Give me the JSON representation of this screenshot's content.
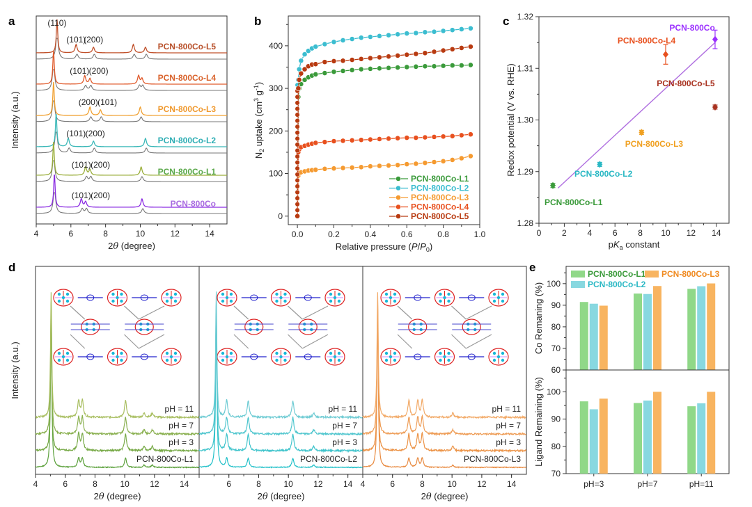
{
  "figure": {
    "panel_labels": [
      "a",
      "b",
      "c",
      "d",
      "e"
    ]
  },
  "chart_data": [
    {
      "id": "a",
      "type": "line",
      "title": "",
      "xlabel": "2θ (degree)",
      "ylabel": "Intensity (a.u.)",
      "xlim": [
        4,
        15
      ],
      "xticks": [
        4,
        6,
        8,
        10,
        12,
        14
      ],
      "grid": false,
      "note": "Stacked XRD patterns: experimental (colored) with simulated (gray) below each",
      "series": [
        {
          "name": "PCN-800Co-L5",
          "color": "#c0502a",
          "peaks": [
            5.2,
            6.3,
            7.3,
            9.6,
            10.3
          ],
          "annotations": [
            "(110)",
            "(101)",
            "(200)"
          ]
        },
        {
          "name": "PCN-800Co-L4",
          "color": "#e05a2b",
          "peaks": [
            5.0,
            6.8,
            7.1,
            9.9,
            10.1
          ],
          "annotations": [
            "(101)",
            "(200)"
          ]
        },
        {
          "name": "PCN-800Co-L3",
          "color": "#f0a030",
          "peaks": [
            5.0,
            7.1,
            7.7,
            10.0
          ],
          "annotations": [
            "(200)",
            "(101)"
          ]
        },
        {
          "name": "PCN-800Co-L2",
          "color": "#3bb8b8",
          "peaks": [
            5.15,
            5.85,
            7.3,
            10.3
          ],
          "annotations": [
            "(101)",
            "(200)"
          ]
        },
        {
          "name": "PCN-800Co-L1",
          "color": "#9aae3a",
          "peaks": [
            5.0,
            6.85,
            7.1,
            10.05
          ],
          "annotations": [
            "(101)",
            "(200)"
          ]
        },
        {
          "name": "PCN-800Co",
          "color": "#8a2be2",
          "peaks": [
            5.05,
            6.6,
            6.85,
            10.1
          ],
          "annotations": [
            "(101)",
            "(200)"
          ]
        }
      ],
      "label_colors": {
        "PCN-800Co-L5": "#b8502a",
        "PCN-800Co-L4": "#d9622b",
        "PCN-800Co-L3": "#f09a30",
        "PCN-800Co-L2": "#2eaeb4",
        "PCN-800Co-L1": "#5aa84a",
        "PCN-800Co": "#a86be0"
      }
    },
    {
      "id": "b",
      "type": "line",
      "title": "",
      "xlabel": "Relative pressure (P/P0)",
      "ylabel": "N2 uptake (cm3 g-1)",
      "xlim": [
        -0.05,
        1.0
      ],
      "ylim": [
        -20,
        470
      ],
      "xticks": [
        0.0,
        0.2,
        0.4,
        0.6,
        0.8,
        1.0
      ],
      "yticks": [
        0,
        100,
        200,
        300,
        400
      ],
      "legend": "bottom-right",
      "grid": false,
      "x": [
        0.0,
        0.005,
        0.01,
        0.02,
        0.04,
        0.06,
        0.08,
        0.1,
        0.15,
        0.2,
        0.25,
        0.3,
        0.35,
        0.4,
        0.45,
        0.5,
        0.55,
        0.6,
        0.65,
        0.7,
        0.75,
        0.8,
        0.85,
        0.9,
        0.95
      ],
      "series": [
        {
          "name": "PCN-800Co-L1",
          "color": "#3a9a3a",
          "values": [
            0,
            280,
            300,
            310,
            320,
            326,
            330,
            333,
            336,
            339,
            341,
            343,
            345,
            346,
            347,
            348,
            349,
            350,
            351,
            352,
            352,
            353,
            354,
            354,
            355
          ]
        },
        {
          "name": "PCN-800Co-L2",
          "color": "#3bbdd0",
          "values": [
            0,
            320,
            345,
            365,
            380,
            388,
            394,
            398,
            404,
            409,
            413,
            416,
            419,
            421,
            423,
            425,
            427,
            429,
            430,
            432,
            433,
            435,
            437,
            439,
            441
          ]
        },
        {
          "name": "PCN-800Co-L3",
          "color": "#f59a30",
          "values": [
            0,
            95,
            100,
            103,
            105,
            107,
            108,
            109,
            111,
            112,
            113,
            114,
            115,
            117,
            118,
            119,
            120,
            122,
            123,
            125,
            127,
            129,
            132,
            136,
            141
          ]
        },
        {
          "name": "PCN-800Co-L4",
          "color": "#e8501e",
          "values": [
            0,
            150,
            157,
            162,
            165,
            168,
            170,
            172,
            174,
            176,
            177,
            178,
            179,
            180,
            181,
            182,
            183,
            184,
            184,
            185,
            186,
            187,
            188,
            190,
            192
          ]
        },
        {
          "name": "PCN-800Co-L5",
          "color": "#b83a10",
          "values": [
            0,
            300,
            320,
            335,
            345,
            352,
            356,
            357,
            362,
            364,
            365,
            367,
            369,
            371,
            373,
            375,
            377,
            379,
            381,
            383,
            386,
            389,
            392,
            395,
            398
          ]
        }
      ]
    },
    {
      "id": "c",
      "type": "scatter",
      "title": "",
      "xlabel": "pKa constant",
      "ylabel": "Redox potential (V vs. RHE)",
      "xlim": [
        0,
        15
      ],
      "ylim": [
        1.28,
        1.32
      ],
      "xticks": [
        0,
        2,
        4,
        6,
        8,
        10,
        12,
        14
      ],
      "yticks": [
        1.28,
        1.29,
        1.3,
        1.31,
        1.32
      ],
      "ytick_labels": [
        "1.28",
        "1.29",
        "1.30",
        "1.31",
        "1.32"
      ],
      "grid": false,
      "points": [
        {
          "name": "PCN-800Co-L1",
          "x": 1.1,
          "y": 1.2873,
          "err": 0.0004,
          "color": "#3a9a3a"
        },
        {
          "name": "PCN-800Co-L2",
          "x": 4.8,
          "y": 1.2914,
          "err": 0.0004,
          "color": "#2ab8c4"
        },
        {
          "name": "PCN-800Co-L3",
          "x": 8.1,
          "y": 1.2976,
          "err": 0.0004,
          "color": "#f0a020"
        },
        {
          "name": "PCN-800Co-L4",
          "x": 10.0,
          "y": 1.3127,
          "err": 0.0019,
          "color": "#e8501e"
        },
        {
          "name": "PCN-800Co-L5",
          "x": 13.9,
          "y": 1.3025,
          "err": 0.0004,
          "color": "#a83220"
        },
        {
          "name": "PCN-800Co",
          "x": 13.9,
          "y": 1.3156,
          "err": 0.0018,
          "color": "#9b30ff"
        }
      ],
      "fit_line": {
        "x": [
          1.5,
          13.9
        ],
        "y": [
          1.2868,
          1.315
        ],
        "color": "#b070e0"
      }
    },
    {
      "id": "d",
      "type": "line",
      "title": "",
      "xlabel": "2θ (degree)",
      "ylabel": "Intensity (a.u.)",
      "xlim": [
        4,
        15
      ],
      "xticks": [
        4,
        6,
        8,
        10,
        12,
        14
      ],
      "grid": false,
      "subpanels": [
        {
          "sample": "PCN-800Co-L1",
          "colors": [
            "#5aa03a",
            "#78aa48",
            "#8ab050",
            "#a8be60"
          ],
          "traces": [
            "PCN-800Co-L1",
            "pH = 3",
            "pH = 7",
            "pH = 11"
          ],
          "peaks": [
            5.05,
            6.9,
            7.15,
            10.05,
            11.3,
            11.85
          ]
        },
        {
          "sample": "PCN-800Co-L2",
          "colors": [
            "#20c0c8",
            "#40c4cc",
            "#50c6ce",
            "#70ccd4"
          ],
          "traces": [
            "PCN-800Co-L2",
            "pH = 3",
            "pH = 7",
            "pH = 11"
          ],
          "peaks": [
            5.15,
            5.85,
            7.3,
            10.3,
            11.7
          ]
        },
        {
          "sample": "PCN-800Co-L3",
          "colors": [
            "#e88a40",
            "#ec9448",
            "#ee9c55",
            "#f2aa68"
          ],
          "traces": [
            "PCN-800Co-L3",
            "pH = 3",
            "pH = 7",
            "pH = 11"
          ],
          "peaks": [
            5.0,
            7.1,
            7.7,
            8.0,
            10.05
          ]
        }
      ]
    },
    {
      "id": "e",
      "type": "bar",
      "title": "",
      "categories": [
        "pH=3",
        "pH=7",
        "pH=11"
      ],
      "legend": "top-left",
      "series_names": [
        "PCN-800Co-L1",
        "PCN-800Co-L2",
        "PCN-800Co-L3"
      ],
      "series_colors": [
        "#90d888",
        "#88d8e0",
        "#f8b460"
      ],
      "upper": {
        "ylabel": "Co Remaning (%)",
        "ylim": [
          60,
          108
        ],
        "yticks": [
          60,
          70,
          80,
          90,
          100
        ],
        "series": [
          {
            "name": "PCN-800Co-L1",
            "values": [
              91.5,
              95.4,
              97.6
            ]
          },
          {
            "name": "PCN-800Co-L2",
            "values": [
              90.7,
              95.2,
              98.8
            ]
          },
          {
            "name": "PCN-800Co-L3",
            "values": [
              89.8,
              98.9,
              100.1
            ]
          }
        ]
      },
      "lower": {
        "ylabel": "Ligand Remaining (%)",
        "ylim": [
          70,
          108
        ],
        "yticks": [
          70,
          80,
          90,
          100
        ],
        "series": [
          {
            "name": "PCN-800Co-L1",
            "values": [
              96.5,
              95.9,
              94.7
            ]
          },
          {
            "name": "PCN-800Co-L2",
            "values": [
              93.6,
              96.8,
              95.8
            ]
          },
          {
            "name": "PCN-800Co-L3",
            "values": [
              97.5,
              100.0,
              100.0
            ]
          }
        ]
      }
    }
  ]
}
